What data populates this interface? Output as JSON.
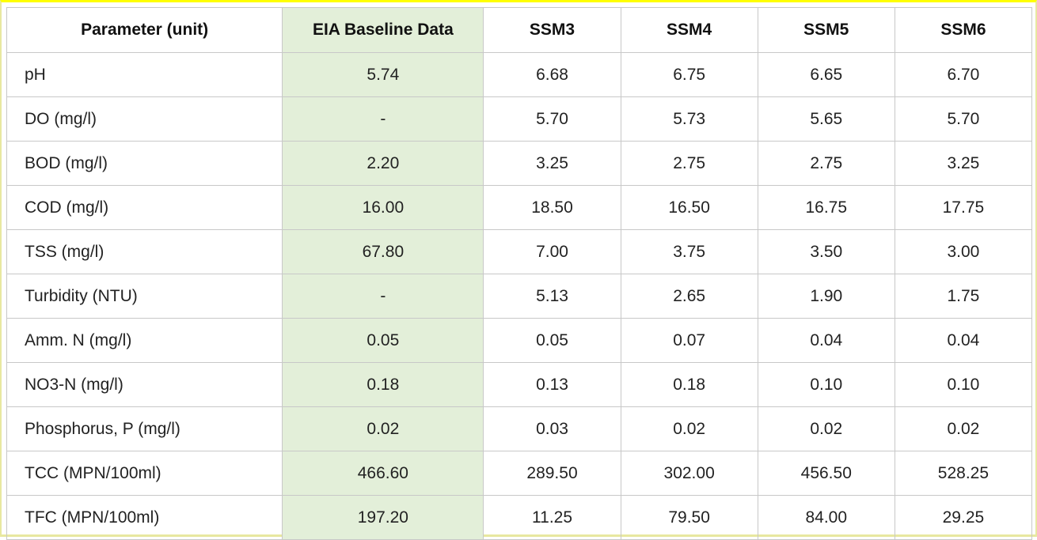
{
  "table": {
    "headers": [
      "Parameter (unit)",
      "EIA Baseline Data",
      "SSM3",
      "SSM4",
      "SSM5",
      "SSM6"
    ],
    "rows": [
      [
        "pH",
        "5.74",
        "6.68",
        "6.75",
        "6.65",
        "6.70"
      ],
      [
        "DO (mg/l)",
        "-",
        "5.70",
        "5.73",
        "5.65",
        "5.70"
      ],
      [
        "BOD (mg/l)",
        "2.20",
        "3.25",
        "2.75",
        "2.75",
        "3.25"
      ],
      [
        "COD (mg/l)",
        "16.00",
        "18.50",
        "16.50",
        "16.75",
        "17.75"
      ],
      [
        "TSS (mg/l)",
        "67.80",
        "7.00",
        "3.75",
        "3.50",
        "3.00"
      ],
      [
        "Turbidity (NTU)",
        "-",
        "5.13",
        "2.65",
        "1.90",
        "1.75"
      ],
      [
        "Amm. N (mg/l)",
        "0.05",
        "0.05",
        "0.07",
        "0.04",
        "0.04"
      ],
      [
        "NO3-N (mg/l)",
        "0.18",
        "0.13",
        "0.18",
        "0.10",
        "0.10"
      ],
      [
        "Phosphorus, P (mg/l)",
        "0.02",
        "0.03",
        "0.02",
        "0.02",
        "0.02"
      ],
      [
        "TCC (MPN/100ml)",
        "466.60",
        "289.50",
        "302.00",
        "456.50",
        "528.25"
      ],
      [
        "TFC (MPN/100ml)",
        "197.20",
        "11.25",
        "79.50",
        "84.00",
        "29.25"
      ]
    ]
  },
  "colors": {
    "baseline_highlight": "#e3efd9",
    "frame_border": "#ffff00",
    "grid": "#c8c8c8"
  }
}
